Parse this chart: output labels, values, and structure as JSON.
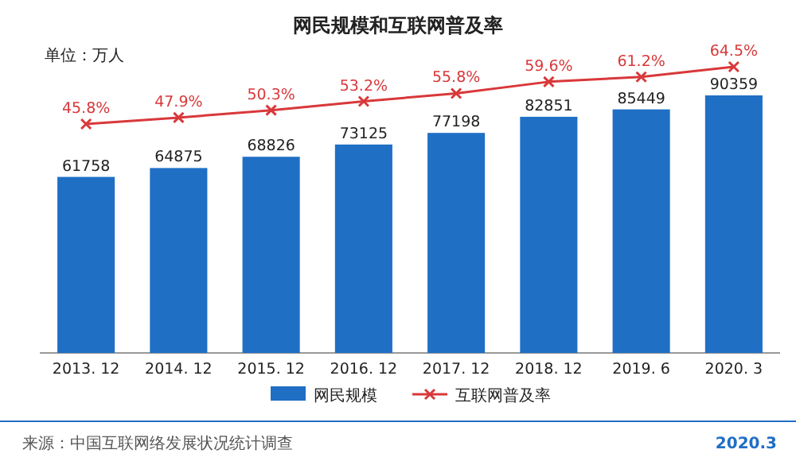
{
  "chart_data": {
    "type": "bar",
    "title": "网民规模和互联网普及率",
    "subtitle": "单位：万人",
    "categories": [
      "2013. 12",
      "2014. 12",
      "2015. 12",
      "2016. 12",
      "2017. 12",
      "2018. 12",
      "2019. 6",
      "2020. 3"
    ],
    "series": [
      {
        "name": "网民规模",
        "color": "#1f6fc5",
        "values": [
          61758,
          64875,
          68826,
          73125,
          77198,
          82851,
          85449,
          90359
        ]
      },
      {
        "name": "互联网普及率",
        "type": "line",
        "axis": "y2",
        "color": "#d9383a",
        "marker": "cross",
        "values": [
          45.8,
          47.9,
          50.3,
          53.2,
          55.8,
          59.6,
          61.2,
          64.5
        ],
        "value_labels": [
          "45.8%",
          "47.9%",
          "50.3%",
          "53.2%",
          "55.8%",
          "59.6%",
          "61.2%",
          "64.5%"
        ]
      }
    ],
    "data_labels": true,
    "legend": "bottom",
    "annotations": [
      "来源：中国互联网络发展状况统计调查",
      "2020.3"
    ]
  }
}
